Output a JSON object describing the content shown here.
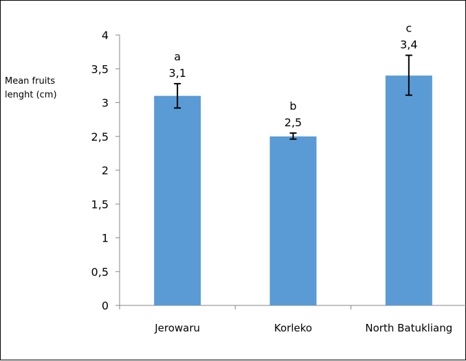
{
  "chart_data": {
    "type": "bar",
    "title": "",
    "xlabel": "",
    "ylabel": "Mean fruits\nlenght (cm)",
    "categories": [
      "Jerowaru",
      "Korleko",
      "North Batukliang"
    ],
    "values": [
      3.1,
      2.5,
      3.4
    ],
    "value_labels": [
      "3,1",
      "2,5",
      "3,4"
    ],
    "error_bars": {
      "low": [
        2.92,
        2.46,
        3.11
      ],
      "high": [
        3.28,
        2.55,
        3.7
      ]
    },
    "significance_letters": [
      "a",
      "b",
      "c"
    ],
    "ylim": [
      0,
      4
    ],
    "yticks": [
      0,
      0.5,
      1,
      1.5,
      2,
      2.5,
      3,
      3.5,
      4
    ],
    "ytick_labels": [
      "0",
      "0,5",
      "1",
      "1,5",
      "2",
      "2,5",
      "3",
      "3,5",
      "4"
    ],
    "grid": false,
    "bar_color": "#5b9bd5",
    "axis_color": "#868686"
  }
}
